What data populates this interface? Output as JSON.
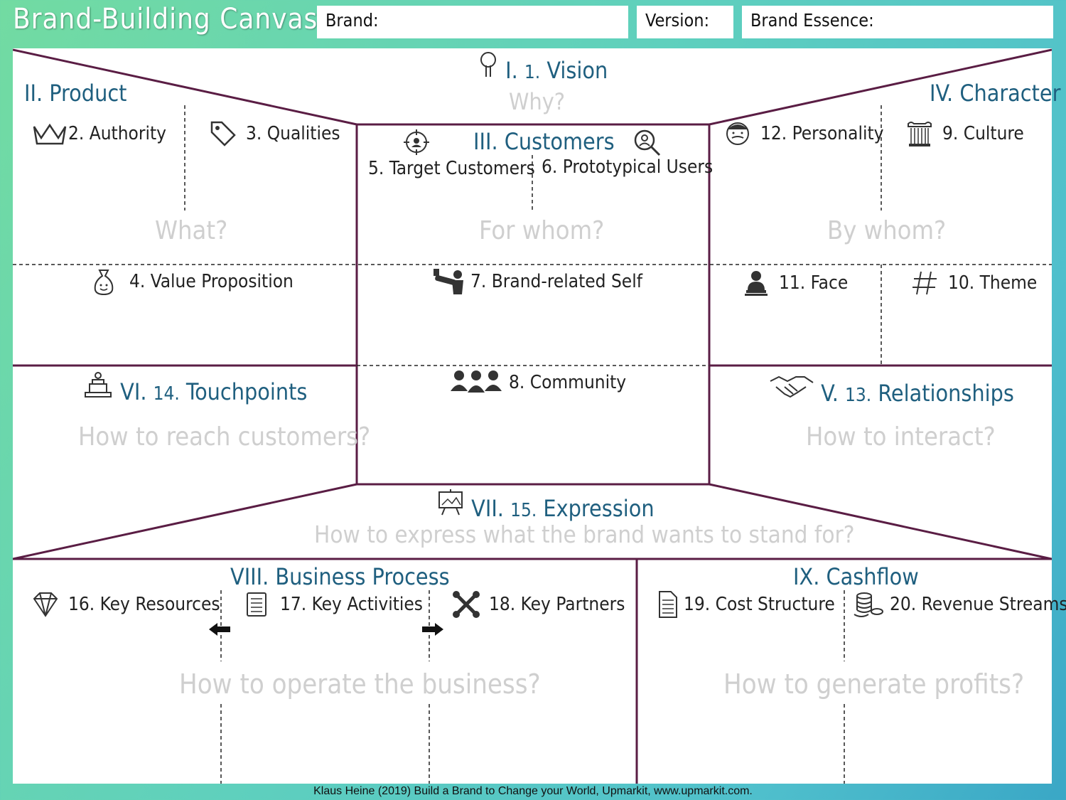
{
  "header": {
    "title": "Brand-Building Canvas",
    "brand_label": "Brand:",
    "version_label": "Version:",
    "essence_label": "Brand Essence:"
  },
  "sections": {
    "vision": {
      "roman": "I.",
      "num": "1.",
      "label": "Vision",
      "question": "Why?"
    },
    "product": {
      "label": "II. Product",
      "question": "What?"
    },
    "customers": {
      "label": "III. Customers",
      "question": "For whom?"
    },
    "character": {
      "label": "IV. Character",
      "question": "By whom?"
    },
    "touchpoints": {
      "roman": "VI.",
      "num": "14.",
      "label": "Touchpoints",
      "question": "How to reach customers?"
    },
    "relationships": {
      "roman": "V.",
      "num": "13.",
      "label": "Relationships",
      "question": "How to interact?"
    },
    "expression": {
      "roman": "VII.",
      "num": "15.",
      "label": "Expression",
      "question": "How to express what the brand wants to stand for?"
    },
    "business": {
      "label": "VIII. Business Process",
      "question": "How to operate the business?"
    },
    "cashflow": {
      "label": "IX. Cashflow",
      "question": "How to generate profits?"
    }
  },
  "items": {
    "authority": "2. Authority",
    "qualities": "3. Qualities",
    "value_prop": "4. Value Proposition",
    "target": "5. Target Customers",
    "prototypical": "6. Prototypical Users",
    "brand_self": "7. Brand-related Self",
    "community": "8. Community",
    "culture": "9. Culture",
    "theme": "10. Theme",
    "face": "11. Face",
    "personality": "12. Personality",
    "resources": "16. Key Resources",
    "activities": "17. Key Activities",
    "partners": "18. Key Partners",
    "cost": "19. Cost Structure",
    "revenue": "20. Revenue Streams"
  },
  "footer": "Klaus Heine (2019) Build a Brand to Change your World, Upmarkit, www.upmarkit.com.",
  "colors": {
    "frame": "#5a1d44",
    "section": "#1f5f7f",
    "question": "#cfcfcf"
  },
  "icons": [
    "tree-icon",
    "crown-icon",
    "tag-icon",
    "target-icon",
    "magnifier-user-icon",
    "money-bag-icon",
    "selfie-icon",
    "group-icon",
    "face-icon",
    "hashtag-icon",
    "speaker-icon",
    "column-icon",
    "podium-icon",
    "handshake-icon",
    "easel-icon",
    "diamond-icon",
    "clipboard-icon",
    "tools-icon",
    "document-icon",
    "coins-icon",
    "arrow-left-icon",
    "arrow-right-icon"
  ]
}
